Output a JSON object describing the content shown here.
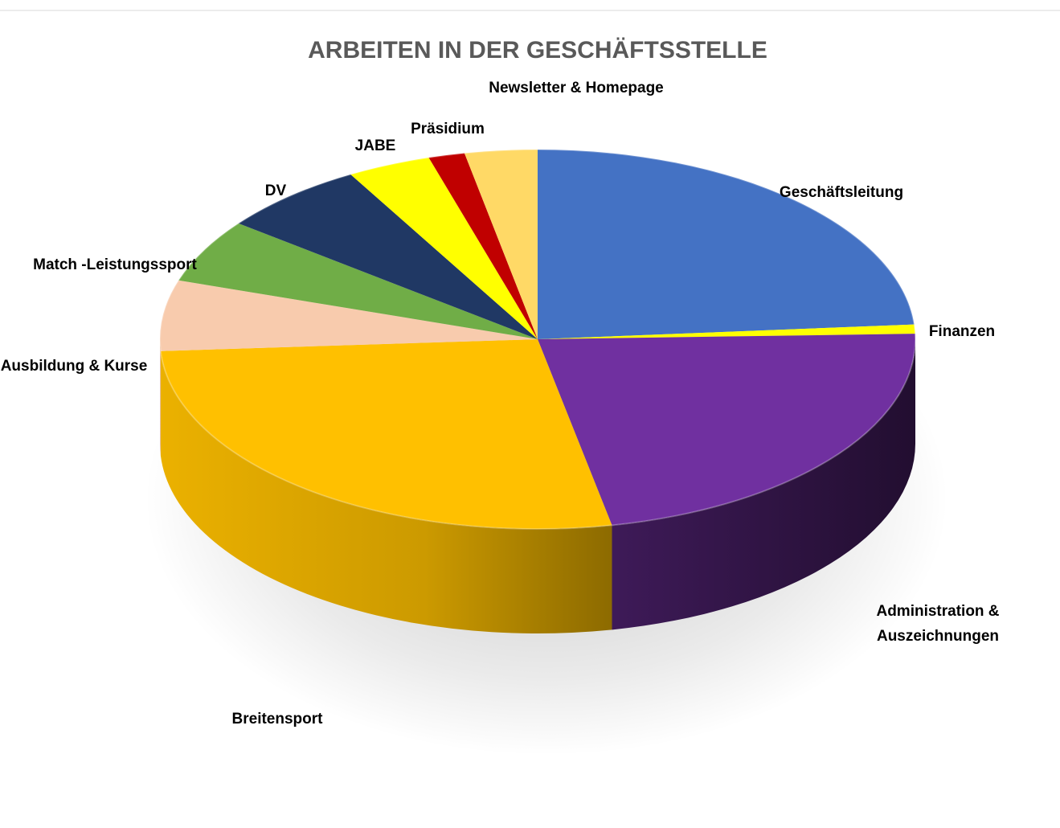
{
  "chart_data": {
    "type": "pie",
    "style": "3d",
    "title": "ARBEITEN IN DER GESCHÄFTSSTELLE",
    "legend": "none",
    "labels_placement": "outside",
    "start": "top, clockwise",
    "slices": [
      {
        "label": [
          "Geschäftsleitung"
        ],
        "value": 24.5,
        "color": "#4472C4"
      },
      {
        "label": [
          "Finanzen"
        ],
        "value": 0.8,
        "color": "#FFFF00"
      },
      {
        "label": [
          "Administration &",
          "Auszeichnungen"
        ],
        "value": 23.0,
        "color": "#7030A0"
      },
      {
        "label": [
          "Breitensport"
        ],
        "value": 28.0,
        "color": "#FFC000"
      },
      {
        "label": [
          "Ausbildung & Kurse"
        ],
        "value": 6.2,
        "color": "#F8CBAD"
      },
      {
        "label": [
          "Match -Leistungssport"
        ],
        "value": 5.6,
        "color": "#70AD47"
      },
      {
        "label": [
          "DV"
        ],
        "value": 6.5,
        "color": "#203864"
      },
      {
        "label": [
          "JABE"
        ],
        "value": 3.7,
        "color": "#FFFF00"
      },
      {
        "label": [
          "Präsidium"
        ],
        "value": 1.6,
        "color": "#C00000"
      },
      {
        "label": [
          "Newsletter & Homepage"
        ],
        "value": 3.2,
        "color": "#FFD966"
      }
    ]
  }
}
